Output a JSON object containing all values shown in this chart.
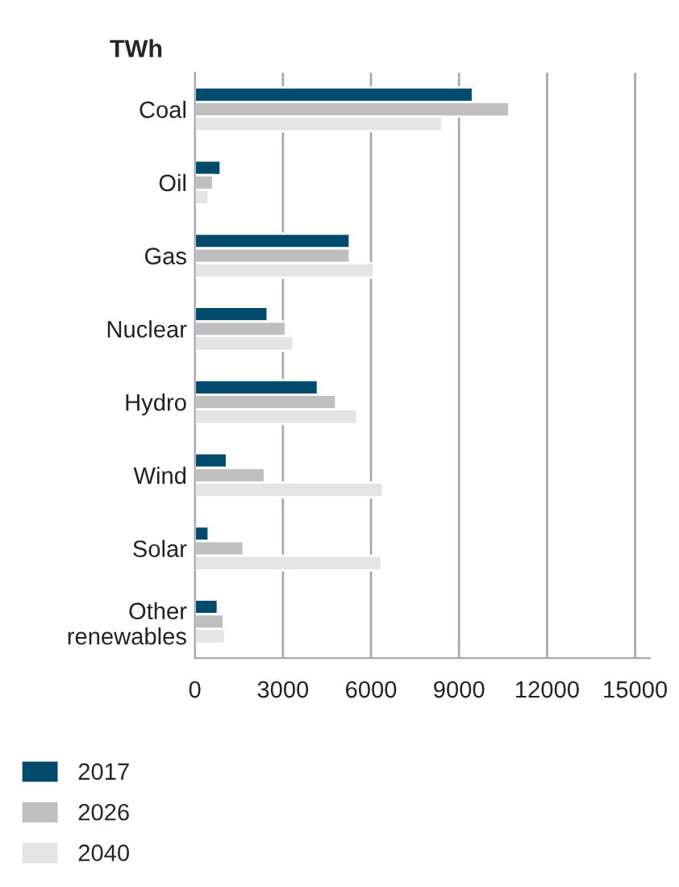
{
  "chart_data": {
    "type": "bar",
    "orientation": "horizontal",
    "ylabel": "TWh",
    "categories": [
      "Coal",
      "Oil",
      "Gas",
      "Nuclear",
      "Hydro",
      "Wind",
      "Solar",
      "Other\nrenewables"
    ],
    "series": [
      {
        "name": "2017",
        "color": "#004b6b",
        "values": [
          9470,
          880,
          5280,
          2480,
          4190,
          1090,
          470,
          780
        ]
      },
      {
        "name": "2026",
        "color": "#bfbfbf",
        "values": [
          10710,
          620,
          5280,
          3100,
          4810,
          2380,
          1660,
          980
        ]
      },
      {
        "name": "2040",
        "color": "#e4e4e4",
        "values": [
          8430,
          470,
          6100,
          3360,
          5530,
          6410,
          6360,
          1030
        ]
      }
    ],
    "xlim": [
      0,
      15500
    ],
    "xticks": [
      0,
      3000,
      6000,
      9000,
      12000,
      15000
    ],
    "grid": "x",
    "legend": "bottom"
  }
}
